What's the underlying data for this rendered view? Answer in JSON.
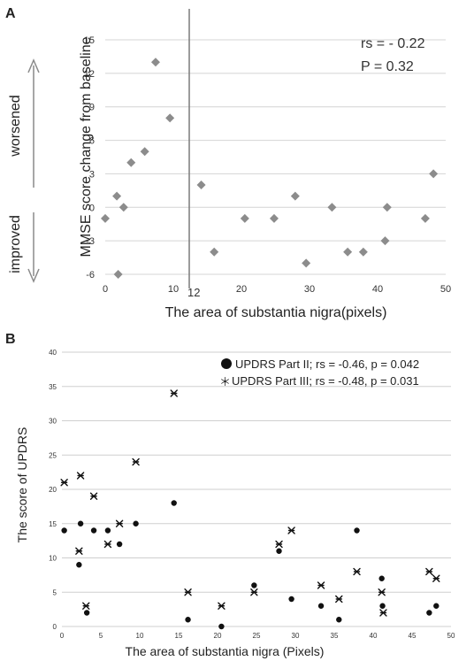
{
  "panels": [
    {
      "label": "A",
      "side_labels": {
        "top": "worsened",
        "bottom": "improved"
      },
      "stats": [
        "rs = - 0.22",
        "P = 0.32"
      ],
      "vline_label": "12"
    },
    {
      "label": "B",
      "legend": [
        {
          "marker": "●",
          "text": "UPDRS Part II; rs = -0.46, p = 0.042"
        },
        {
          "marker": "＊",
          "text": "UPDRS Part III; rs = -0.48, p = 0.031"
        }
      ]
    }
  ],
  "chart_data": [
    {
      "type": "scatter",
      "xlabel": "The area of substantia nigra(pixels)",
      "ylabel": "MMSE score change from baseline",
      "xlim": [
        0,
        50
      ],
      "ylim": [
        -6,
        15
      ],
      "xticks": [
        0,
        10,
        20,
        30,
        40,
        50
      ],
      "yticks": [
        -6,
        -3,
        0,
        3,
        6,
        9,
        12,
        15
      ],
      "marker": "diamond",
      "color": "#8c8c8c",
      "grid": "horizontal",
      "vline": 12,
      "points": [
        [
          0,
          -1
        ],
        [
          1.7,
          1
        ],
        [
          1.9,
          -6
        ],
        [
          2.7,
          0
        ],
        [
          3.8,
          4
        ],
        [
          5.8,
          5
        ],
        [
          7.4,
          13
        ],
        [
          9.5,
          8
        ],
        [
          14.1,
          2
        ],
        [
          16.0,
          -4
        ],
        [
          20.5,
          -1
        ],
        [
          24.8,
          -1
        ],
        [
          27.9,
          1
        ],
        [
          29.5,
          -5
        ],
        [
          33.3,
          0
        ],
        [
          35.6,
          -4
        ],
        [
          37.9,
          -4
        ],
        [
          41.1,
          -3
        ],
        [
          41.4,
          0
        ],
        [
          47.0,
          -1
        ],
        [
          48.2,
          3
        ]
      ]
    },
    {
      "type": "scatter",
      "xlabel": "The area  of substantia nigra (Pixels)",
      "ylabel": "The score of UPDRS",
      "xlim": [
        0,
        50
      ],
      "ylim": [
        0,
        40
      ],
      "xticks": [
        0,
        5,
        10,
        15,
        20,
        25,
        30,
        35,
        40,
        45,
        50
      ],
      "yticks": [
        0,
        5,
        10,
        15,
        20,
        25,
        30,
        35,
        40
      ],
      "grid": "horizontal",
      "series": [
        {
          "name": "UPDRS Part II; rs = -0.46, p = 0.042",
          "marker": "dot",
          "points": [
            [
              0.3,
              14
            ],
            [
              2.2,
              9
            ],
            [
              2.4,
              15
            ],
            [
              3.2,
              2
            ],
            [
              4.1,
              14
            ],
            [
              5.9,
              14
            ],
            [
              7.4,
              12
            ],
            [
              9.5,
              15
            ],
            [
              14.4,
              18
            ],
            [
              16.2,
              1
            ],
            [
              20.5,
              0
            ],
            [
              24.7,
              6
            ],
            [
              27.9,
              11
            ],
            [
              29.5,
              4
            ],
            [
              33.3,
              3
            ],
            [
              35.6,
              1
            ],
            [
              37.9,
              14
            ],
            [
              41.1,
              7
            ],
            [
              41.2,
              3
            ],
            [
              47.2,
              2
            ],
            [
              48.1,
              3
            ]
          ]
        },
        {
          "name": "UPDRS Part III; rs = -0.48, p = 0.031",
          "marker": "asterisk",
          "points": [
            [
              0.3,
              21
            ],
            [
              2.2,
              11
            ],
            [
              2.4,
              22
            ],
            [
              3.1,
              3
            ],
            [
              4.1,
              19
            ],
            [
              5.9,
              12
            ],
            [
              7.4,
              15
            ],
            [
              9.5,
              24
            ],
            [
              14.4,
              34
            ],
            [
              16.2,
              5
            ],
            [
              20.5,
              3
            ],
            [
              24.7,
              5
            ],
            [
              27.9,
              12
            ],
            [
              29.5,
              14
            ],
            [
              33.3,
              6
            ],
            [
              35.6,
              4
            ],
            [
              37.9,
              8
            ],
            [
              41.1,
              5
            ],
            [
              41.3,
              2
            ],
            [
              47.2,
              8
            ],
            [
              48.1,
              7
            ]
          ]
        }
      ]
    }
  ]
}
